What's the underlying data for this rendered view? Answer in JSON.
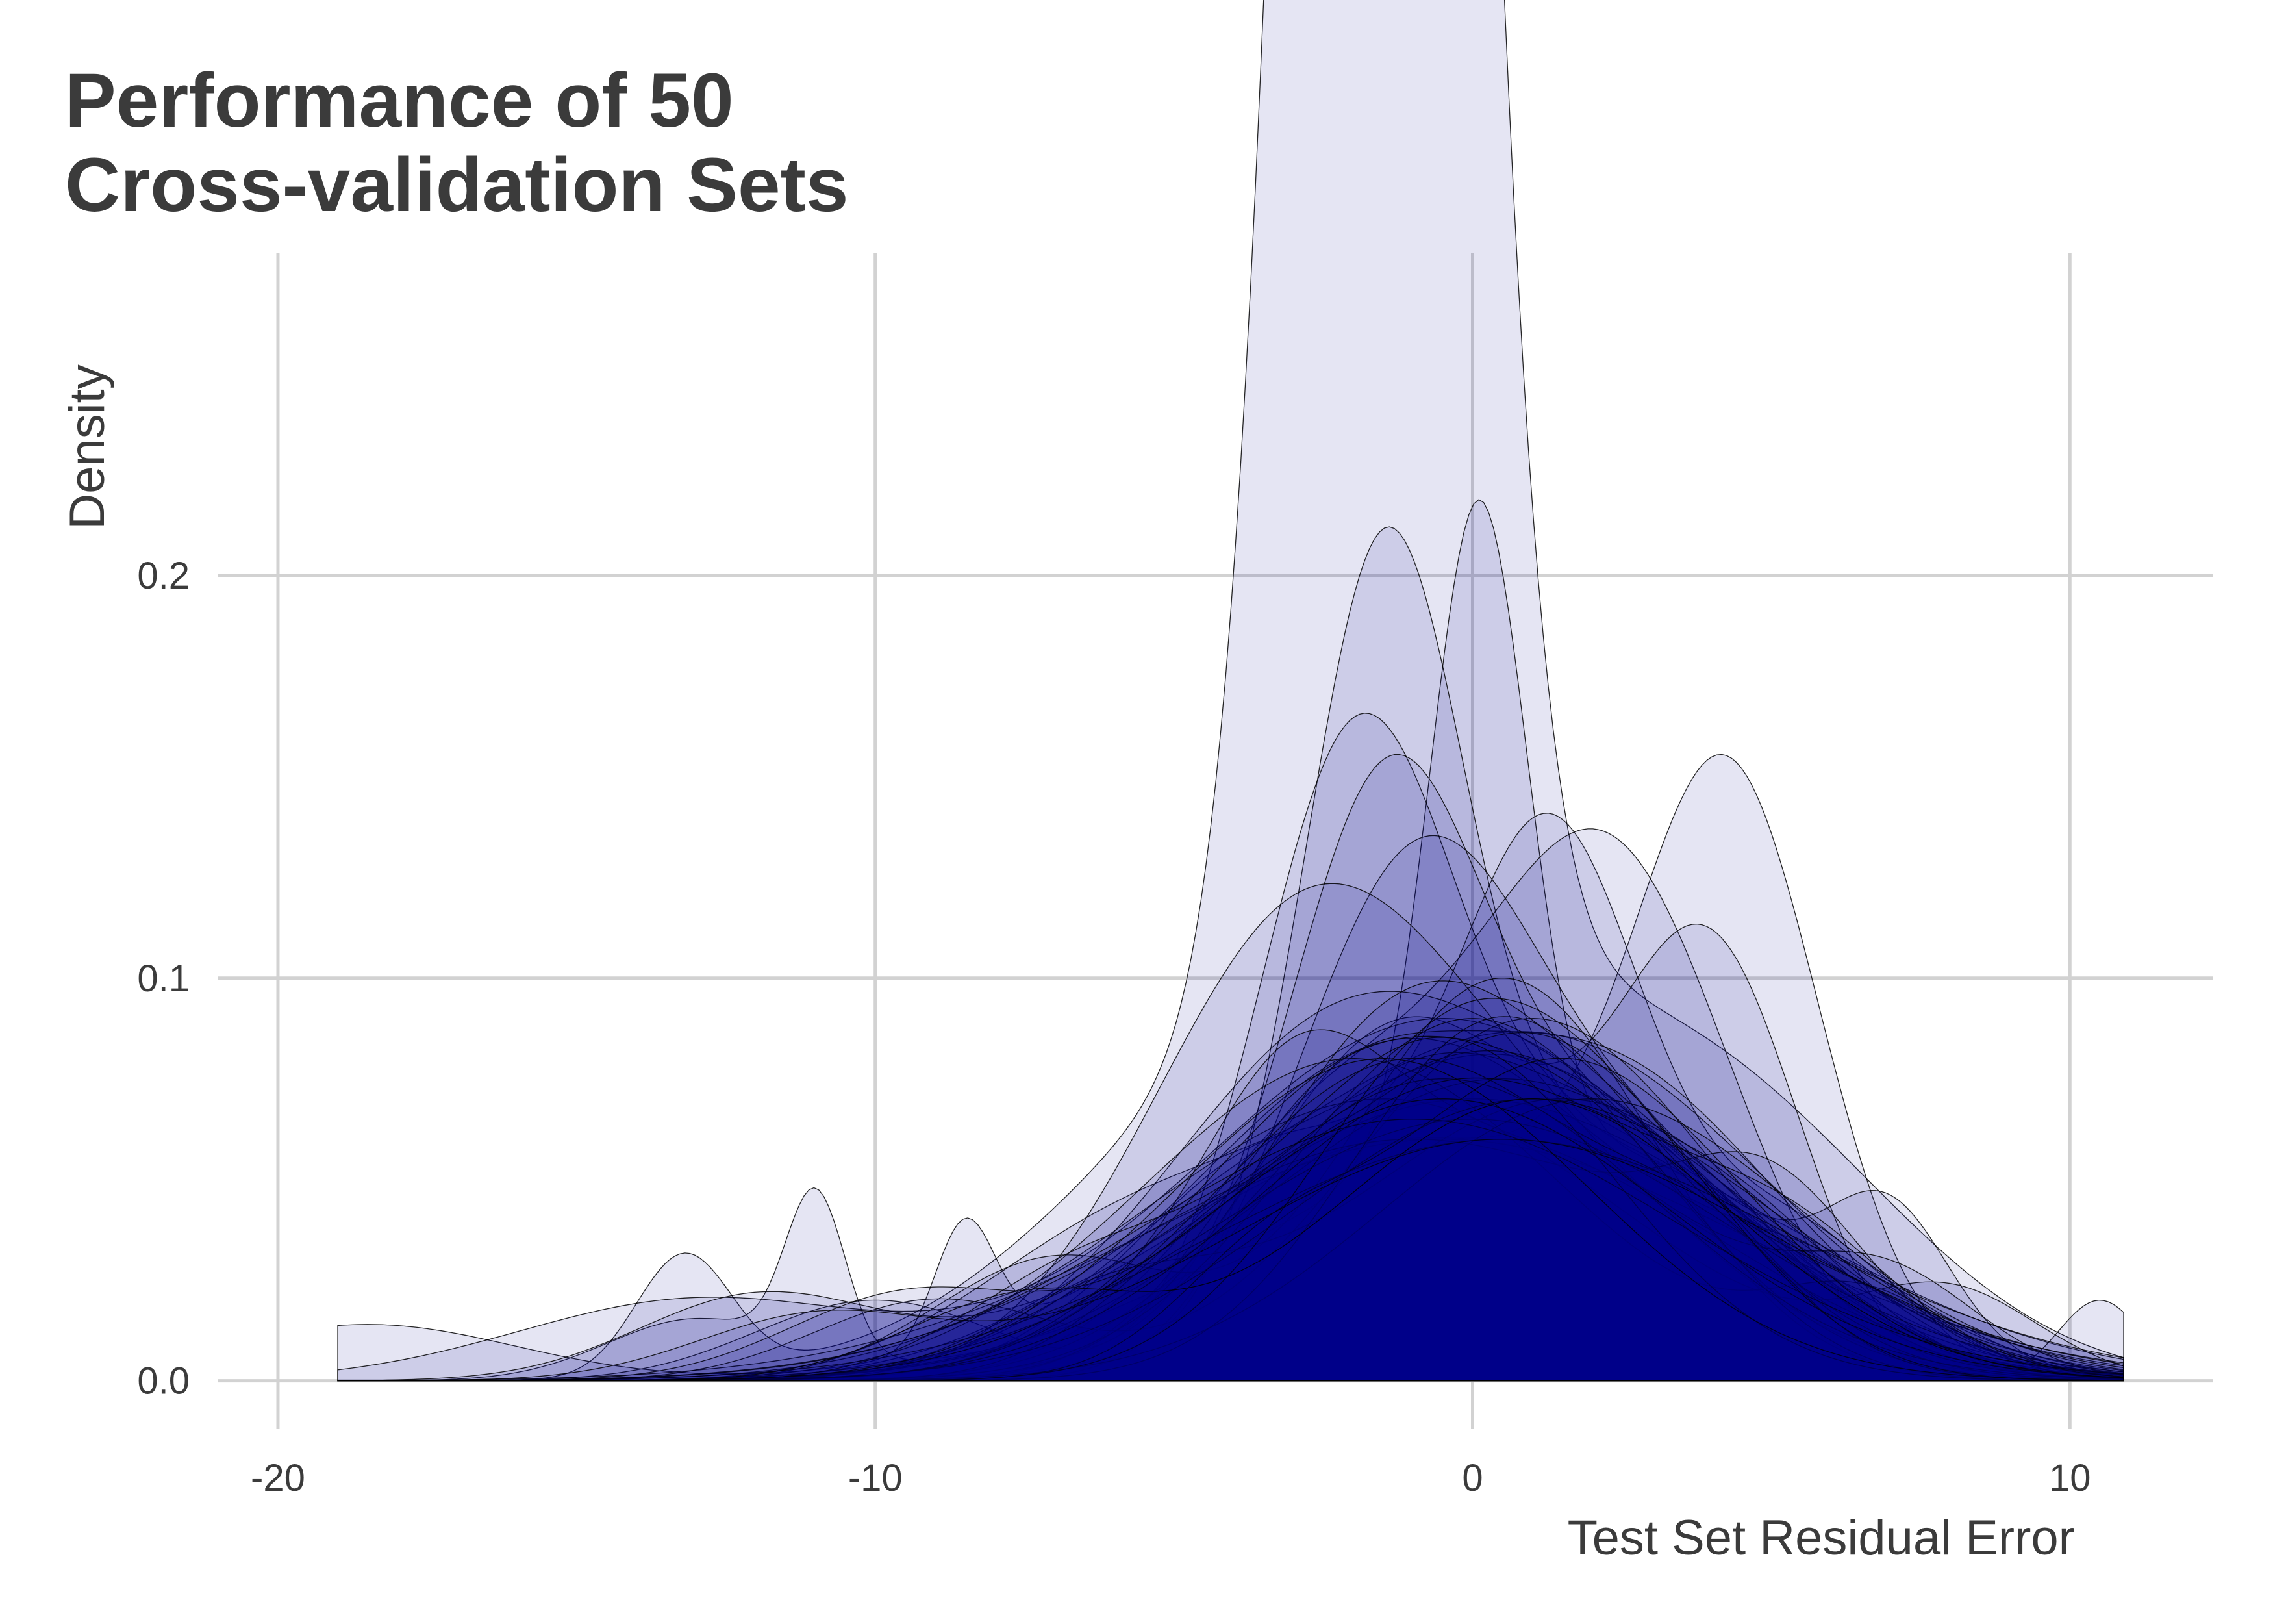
{
  "chart_data": {
    "type": "area",
    "title_lines": [
      "Performance of 50",
      "Cross-validation Sets"
    ],
    "xlabel": "Test Set Residual Error",
    "ylabel": "Density",
    "xlim": [
      -21,
      12.4
    ],
    "ylim": [
      -0.012,
      0.28
    ],
    "x_ticks": [
      -20,
      -10,
      0,
      10
    ],
    "x_tick_labels": [
      "-20",
      "-10",
      "0",
      "10"
    ],
    "y_ticks": [
      0.0,
      0.1,
      0.2
    ],
    "y_tick_labels": [
      "0.0",
      "0.1",
      "0.2"
    ],
    "grid": true,
    "legend": "none",
    "fill_color": "#00008B",
    "fill_opacity": 0.1,
    "outline_color": "#000000",
    "series_count": 50,
    "series": [
      {
        "range": [
          -19,
          10.9
        ],
        "components": [
          [
            1.0,
            -1.5,
            1.2,
            0.2
          ],
          [
            0.1,
            -1.8,
            4.0,
            0.04
          ],
          [
            0.05,
            4.5,
            3.0,
            0.02
          ],
          [
            0.03,
            -13.2,
            0.8,
            0.0
          ]
        ]
      },
      {
        "range": [
          -19,
          10.9
        ],
        "components": [
          [
            0.16,
            0.1,
            0.8,
            0.0
          ],
          [
            0.06,
            1.0,
            4.5,
            0.0
          ],
          [
            0.015,
            -13,
            1.5,
            0.0
          ],
          [
            0.04,
            -11,
            0.5,
            0.0
          ]
        ]
      },
      {
        "range": [
          -19,
          10.9
        ],
        "components": [
          [
            0.13,
            4.3,
            1.5,
            0.0
          ],
          [
            0.06,
            -1.0,
            4.0,
            0.0
          ],
          [
            0.03,
            -8.5,
            0.5,
            0.0
          ],
          [
            0.014,
            -18.5,
            2.5,
            0.0
          ]
        ]
      },
      {
        "range": [
          -19,
          10.9
        ],
        "components": [
          [
            0.17,
            -1.5,
            1.3,
            0.0
          ],
          [
            0.06,
            1.5,
            3.5,
            0.0
          ]
        ]
      },
      {
        "range": [
          -19,
          10.9
        ],
        "components": [
          [
            0.14,
            -2.0,
            1.6,
            0.0
          ],
          [
            0.06,
            2.0,
            3.0,
            0.0
          ],
          [
            0.02,
            -10,
            2.0,
            0.0
          ]
        ]
      },
      {
        "range": [
          -19,
          10.9
        ],
        "components": [
          [
            0.12,
            1.3,
            1.5,
            0.0
          ],
          [
            0.06,
            -3.0,
            2.5,
            0.0
          ],
          [
            0.04,
            5.0,
            2.0,
            0.0
          ]
        ]
      },
      {
        "range": [
          -19,
          10.9
        ],
        "components": [
          [
            0.12,
            2.4,
            2.0,
            0.0
          ],
          [
            0.07,
            -2.0,
            2.5,
            0.0
          ]
        ]
      },
      {
        "range": [
          -19,
          10.9
        ],
        "components": [
          [
            0.1,
            4.0,
            1.5,
            0.0
          ],
          [
            0.09,
            -1.0,
            2.5,
            0.0
          ],
          [
            0.02,
            10.5,
            0.7,
            0.0
          ]
        ]
      },
      {
        "range": [
          -19,
          10.9
        ],
        "components": [
          [
            0.12,
            -1.0,
            2.0,
            0.0
          ],
          [
            0.05,
            3.0,
            2.5,
            0.0
          ]
        ]
      },
      {
        "range": [
          -19,
          10.9
        ],
        "components": [
          [
            0.1,
            -1.5,
            1.5,
            0.0
          ],
          [
            0.07,
            1.0,
            3.5,
            0.0
          ],
          [
            0.03,
            7.0,
            1.0,
            0.0
          ]
        ]
      },
      {
        "range": [
          -19,
          10.9
        ],
        "components": [
          [
            0.09,
            -0.5,
            4.0,
            0.0
          ],
          [
            0.02,
            -13,
            3.0,
            0.0
          ]
        ]
      },
      {
        "range": [
          -19,
          10.9
        ],
        "components": [
          [
            0.08,
            1.5,
            3.5,
            0.0
          ],
          [
            0.03,
            -4.0,
            3.0,
            0.0
          ]
        ]
      },
      {
        "range": [
          -19,
          10.9
        ],
        "components": [
          [
            0.085,
            -1.0,
            3.5,
            0.0
          ],
          [
            0.02,
            6.0,
            2.0,
            0.0
          ]
        ]
      },
      {
        "range": [
          -19,
          10.9
        ],
        "components": [
          [
            0.08,
            0.5,
            3.5,
            0.0
          ],
          [
            0.03,
            -6.0,
            2.5,
            0.0
          ]
        ]
      },
      {
        "range": [
          -19,
          10.9
        ],
        "components": [
          [
            0.09,
            -2.0,
            3.0,
            0.0
          ],
          [
            0.04,
            3.0,
            2.5,
            0.0
          ]
        ]
      },
      {
        "range": [
          -19,
          10.9
        ],
        "components": [
          [
            0.07,
            0.0,
            4.5,
            0.0
          ],
          [
            0.02,
            -12,
            2.0,
            0.0
          ]
        ]
      },
      {
        "range": [
          -19,
          10.9
        ],
        "components": [
          [
            0.1,
            -3.0,
            2.5,
            0.0
          ],
          [
            0.05,
            1.0,
            3.0,
            0.0
          ]
        ]
      },
      {
        "range": [
          -19,
          10.9
        ],
        "components": [
          [
            0.06,
            -0.5,
            5.0,
            0.0
          ]
        ]
      },
      {
        "range": [
          -19,
          10.9
        ],
        "components": [
          [
            0.08,
            2.0,
            3.0,
            0.0
          ],
          [
            0.05,
            -2.5,
            2.0,
            0.0
          ]
        ]
      },
      {
        "range": [
          -19,
          10.9
        ],
        "components": [
          [
            0.1,
            0.5,
            2.5,
            0.0
          ],
          [
            0.03,
            -7.0,
            2.0,
            0.0
          ]
        ]
      },
      {
        "range": [
          -19,
          10.9
        ],
        "components": [
          [
            0.07,
            -1.5,
            4.0,
            0.0
          ],
          [
            0.02,
            8.0,
            1.5,
            0.0
          ]
        ]
      },
      {
        "range": [
          -19,
          10.9
        ],
        "components": [
          [
            0.09,
            1.0,
            3.0,
            0.0
          ],
          [
            0.02,
            -9.0,
            2.0,
            0.0
          ]
        ]
      },
      {
        "range": [
          -19,
          10.9
        ],
        "components": [
          [
            0.08,
            -0.5,
            3.0,
            0.0
          ],
          [
            0.03,
            4.5,
            2.0,
            0.0
          ]
        ]
      },
      {
        "range": [
          -19,
          10.9
        ],
        "components": [
          [
            0.06,
            0.0,
            4.0,
            0.0
          ],
          [
            0.04,
            -3.0,
            1.5,
            0.0
          ]
        ]
      },
      {
        "range": [
          -19,
          10.9
        ],
        "components": [
          [
            0.09,
            -1.0,
            2.5,
            0.0
          ],
          [
            0.04,
            3.5,
            2.5,
            0.0
          ]
        ]
      },
      {
        "range": [
          -19,
          10.9
        ],
        "components": [
          [
            0.075,
            0.5,
            4.0,
            0.0
          ]
        ]
      },
      {
        "range": [
          -19,
          10.9
        ],
        "components": [
          [
            0.08,
            -2.0,
            3.5,
            0.0
          ],
          [
            0.02,
            6.5,
            1.5,
            0.0
          ]
        ]
      },
      {
        "range": [
          -19,
          10.9
        ],
        "components": [
          [
            0.07,
            1.5,
            3.5,
            0.0
          ],
          [
            0.02,
            -6.0,
            2.0,
            0.0
          ]
        ]
      },
      {
        "range": [
          -19,
          10.9
        ],
        "components": [
          [
            0.09,
            0.0,
            3.0,
            0.0
          ]
        ]
      },
      {
        "range": [
          -19,
          10.9
        ],
        "components": [
          [
            0.06,
            -1.0,
            4.5,
            0.0
          ],
          [
            0.03,
            5.0,
            1.5,
            0.0
          ]
        ]
      },
      {
        "range": [
          -19,
          10.9
        ],
        "components": [
          [
            0.08,
            0.5,
            3.2,
            0.0
          ],
          [
            0.02,
            -5.0,
            2.5,
            0.0
          ]
        ]
      },
      {
        "range": [
          -19,
          10.9
        ],
        "components": [
          [
            0.07,
            -0.5,
            3.8,
            0.0
          ],
          [
            0.02,
            7.0,
            1.5,
            0.0
          ]
        ]
      },
      {
        "range": [
          -19,
          10.9
        ],
        "components": [
          [
            0.085,
            1.0,
            2.8,
            0.0
          ],
          [
            0.03,
            -4.0,
            2.0,
            0.0
          ]
        ]
      },
      {
        "range": [
          -19,
          10.9
        ],
        "components": [
          [
            0.065,
            0.0,
            4.2,
            0.0
          ]
        ]
      },
      {
        "range": [
          -19,
          10.9
        ],
        "components": [
          [
            0.08,
            -1.5,
            3.0,
            0.0
          ],
          [
            0.03,
            2.5,
            2.0,
            0.0
          ]
        ]
      },
      {
        "range": [
          -19,
          10.9
        ],
        "components": [
          [
            0.07,
            2.0,
            3.5,
            0.0
          ]
        ]
      },
      {
        "range": [
          -19,
          10.9
        ],
        "components": [
          [
            0.075,
            -0.5,
            3.5,
            0.0
          ],
          [
            0.02,
            -9.5,
            2.0,
            0.0
          ]
        ]
      },
      {
        "range": [
          -19,
          10.9
        ],
        "components": [
          [
            0.09,
            0.5,
            2.5,
            0.0
          ],
          [
            0.02,
            6.0,
            2.0,
            0.0
          ]
        ]
      },
      {
        "range": [
          -19,
          10.9
        ],
        "components": [
          [
            0.06,
            0.5,
            4.8,
            0.0
          ]
        ]
      },
      {
        "range": [
          -19,
          10.9
        ],
        "components": [
          [
            0.08,
            -1.0,
            3.2,
            0.0
          ],
          [
            0.02,
            4.0,
            1.5,
            0.0
          ]
        ]
      },
      {
        "range": [
          -19,
          10.9
        ],
        "components": [
          [
            0.07,
            1.0,
            4.0,
            0.0
          ]
        ]
      },
      {
        "range": [
          -19,
          10.9
        ],
        "components": [
          [
            0.085,
            -0.5,
            2.8,
            0.0
          ],
          [
            0.025,
            -6.5,
            2.0,
            0.0
          ]
        ]
      },
      {
        "range": [
          -19,
          10.9
        ],
        "components": [
          [
            0.075,
            0.0,
            3.6,
            0.0
          ],
          [
            0.02,
            5.5,
            1.8,
            0.0
          ]
        ]
      },
      {
        "range": [
          -19,
          10.9
        ],
        "components": [
          [
            0.065,
            -1.0,
            4.4,
            0.0
          ]
        ]
      },
      {
        "range": [
          -19,
          10.9
        ],
        "components": [
          [
            0.08,
            1.5,
            3.0,
            0.0
          ],
          [
            0.02,
            -3.5,
            1.5,
            0.0
          ]
        ]
      },
      {
        "range": [
          -19,
          10.9
        ],
        "components": [
          [
            0.07,
            -0.5,
            3.8,
            0.0
          ]
        ]
      },
      {
        "range": [
          -19,
          10.9
        ],
        "components": [
          [
            0.09,
            0.0,
            2.6,
            0.0
          ],
          [
            0.02,
            3.5,
            2.0,
            0.0
          ]
        ]
      },
      {
        "range": [
          -19,
          10.9
        ],
        "components": [
          [
            0.06,
            0.5,
            4.5,
            0.0
          ],
          [
            0.015,
            -11,
            2.0,
            0.0
          ]
        ]
      },
      {
        "range": [
          -19,
          10.9
        ],
        "components": [
          [
            0.08,
            -1.5,
            3.4,
            0.0
          ]
        ]
      },
      {
        "range": [
          -19,
          10.9
        ],
        "components": [
          [
            0.07,
            1.0,
            3.3,
            0.0
          ],
          [
            0.02,
            -7.5,
            2.0,
            0.0
          ]
        ]
      }
    ]
  }
}
